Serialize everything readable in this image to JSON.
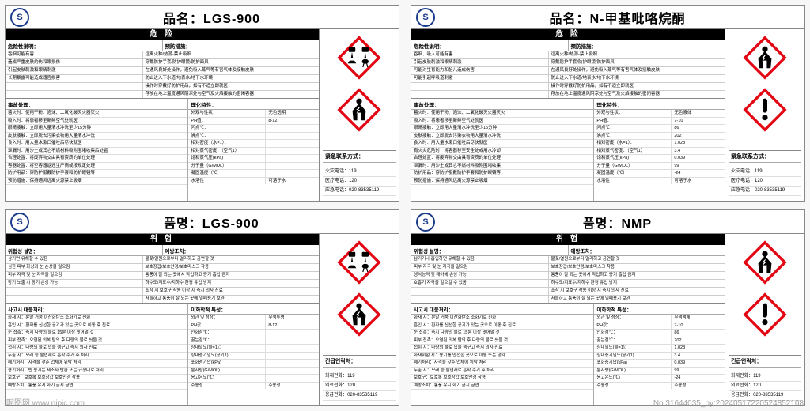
{
  "colors": {
    "picto_border": "#e30613",
    "picto_fill": "#ffffff",
    "picto_symbol": "#000000",
    "logo_color": "#1a3a8a",
    "card_border": "#888888",
    "danger_bg": "#000000",
    "danger_fg": "#ffffff"
  },
  "watermark_left": "昵图网 www.nipic.com",
  "watermark_right": "No.31644035_by:20240517220524852108",
  "cards": [
    {
      "title_prefix": "品名：",
      "title_value": "LGS-900",
      "danger_label": "危 险",
      "pictograms": [
        "corrosion",
        "health"
      ],
      "contact_head": "紧急联系方式：",
      "contacts": [
        "火灾电话：119",
        "医疗电话：120",
        "应急电话：020-83535119"
      ],
      "sec1_h1": "危险性说明：",
      "sec1_h2": "预防措施：",
      "sec1_rows": [
        [
          "吞咽可能有害",
          "远离火种/热源-禁止吸烟"
        ],
        [
          "造成严重皮肤灼伤和眼损伤",
          "穿戴防护手套/防护眼镜/防护面具"
        ],
        [
          "引起皮肤刺激和眼睛刺激",
          "在通风良好处操作，避免吸入蒸气等有害气体及接触皮肤"
        ],
        [
          "长期暴露可能造成器官损害",
          "防止进入下水道/地表水/地下水环境"
        ],
        [
          "",
          "操作时穿戴好防护用品，如有不适立即就医"
        ],
        [
          "",
          "存放在地上温度通风阴凉处与空气及火焰接触的密闭容器"
        ]
      ],
      "sec2_h": "事故处理：",
      "sec2_lines": [
        "着火时：使用干粉、泡沫、二氧化碳灭火器灭火",
        "吸入时：将患者移至新鲜空气处就医",
        "眼睛接触：立即用大量清水冲洗至少15分钟",
        "皮肤接触：立即脱去污染衣物用大量清水冲洗",
        "食入时：用大量水漱口催吐后尽快就医",
        "泄漏时：用沙土或其它不燃材料吸附围堵收集后处置",
        "合理处置：将废弃物交由具有资质的单位处理",
        "容器处置：将空容器返还生产商或按规定处理",
        "防护用品：穿防护服戴防护手套和防护眼镜等",
        "预防措施：保持通风远离火源禁止吸烟"
      ],
      "phys_h": "理化特性：",
      "phys_rows": [
        [
          "外观与性状：",
          "无色透明"
        ],
        [
          "PH值：",
          "8-12"
        ],
        [
          "闪点℃：",
          ""
        ],
        [
          "沸点℃：",
          ""
        ],
        [
          "相对密度（水=1）：",
          ""
        ],
        [
          "相对蒸气密度：（空气1）",
          ""
        ],
        [
          "饱和蒸气压(kPa)",
          ""
        ],
        [
          "分子量（G/MOL）",
          ""
        ],
        [
          "凝固温度（℃）",
          ""
        ],
        [
          "水溶性",
          "可溶于水"
        ]
      ]
    },
    {
      "title_prefix": "品名：",
      "title_value": "N-甲基吡咯烷酮",
      "danger_label": "危 险",
      "pictograms": [
        "health",
        "exclaim"
      ],
      "contact_head": "紧急联系方式：",
      "contacts": [
        "火灾电话：119",
        "医疗电话：120",
        "应急电话：020-83535119"
      ],
      "sec1_h1": "危险性说明：",
      "sec1_h2": "预防措施：",
      "sec1_rows": [
        [
          "吞咽、吸入可能有害",
          "远离火种/热源-禁止吸烟"
        ],
        [
          "引起皮肤刺激和眼睛刺激",
          "穿戴防护手套/防护眼镜/防护面具"
        ],
        [
          "可能对生育能力和胎儿造成伤害",
          "在通风良好处操作，避免吸入蒸气等有害气体及接触皮肤"
        ],
        [
          "可能引起呼吸道刺激",
          "防止进入下水道/地表水/地下水环境"
        ],
        [
          "",
          "操作时穿戴好防护用品，如有不适立即就医"
        ],
        [
          "",
          "存放在地上温度通风阴凉处与空气及火焰接触的密闭容器"
        ]
      ],
      "sec2_h": "事故处理：",
      "sec2_lines": [
        "着火时：使用干粉、泡沫、二氧化碳灭火器灭火",
        "吸入时：将患者移至新鲜空气处就医",
        "眼睛接触：立即用大量清水冲洗至少15分钟",
        "皮肤接触：立即脱去污染衣物用大量清水冲洗",
        "食入时：用大量水漱口催吐后尽快就医",
        "有火灾危险时：将容器移至安全处或用水冷却",
        "合理处置：将废弃物交由具有资质的单位处理",
        "泄漏时：用沙土或其它不燃材料吸附围堵收集",
        "防护用品：穿防护服戴防护手套和防护眼镜等",
        "预防措施：保持通风远离火源禁止吸烟"
      ],
      "phys_h": "理化特性：",
      "phys_rows": [
        [
          "外观与性状：",
          "无色液体"
        ],
        [
          "PH值：",
          "7-10"
        ],
        [
          "闪点℃：",
          "86"
        ],
        [
          "沸点℃：",
          "202"
        ],
        [
          "相对密度（水=1）：",
          "1.028"
        ],
        [
          "相对蒸气密度：（空气1）",
          "3.4"
        ],
        [
          "饱和蒸气压(kPa)",
          "0.039"
        ],
        [
          "分子量（G/MOL）",
          "99"
        ],
        [
          "凝固温度（℃）",
          "-24"
        ],
        [
          "水溶性",
          "可溶于水"
        ]
      ]
    },
    {
      "title_prefix": "품명：",
      "title_value": "LGS-900",
      "danger_label": "위 험",
      "pictograms": [
        "corrosion",
        "health"
      ],
      "contact_head": "긴급연락처：",
      "contacts": [
        "화재전화：119",
        "의료전화：120",
        "응급전화：020-83535119"
      ],
      "sec1_h1": "위험성 설명：",
      "sec1_h2": "예방조치：",
      "sec1_rows": [
        [
          "삼키면 유해할 수 있음",
          "불꽃/열원으로부터 멀리하고 금연할 것"
        ],
        [
          "심한 피부 화상과 눈 손상을 일으킴",
          "보호장갑/보호안경/보호마스크 착용"
        ],
        [
          "피부 자극 및 눈 자극을 일으킴",
          "통풍이 잘 되는 곳에서 작업하고 증기 흡입 금지"
        ],
        [
          "장기 노출 시 장기 손상 가능",
          "하수도/지표수/지하수 환경 유입 방지"
        ],
        [
          "",
          "조작 시 보호구 착용 이상 시 즉시 의사 진료"
        ],
        [
          "",
          "서늘하고 통풍이 잘 되는 곳에 밀폐용기 보관"
        ]
      ],
      "sec2_h": "사고시 대응처리：",
      "sec2_lines": [
        "화재 시：분말 거품 이산화탄소 소화기로 진화",
        "흡입 시：환자를 신선한 공기가 있는 곳으로 이동 후 진료",
        "눈 접촉：즉시 다량의 물로 15분 이상 씻어낼 것",
        "피부 접촉：오염된 의복 탈의 후 다량의 물로 씻을 것",
        "섭취 시：다량의 물로 입을 헹구고 즉시 의사 진료",
        "누출 시：모래 등 불연재로 흡착 수거 후 처리",
        "폐기처리：자격을 갖춘 업체에 위탁 처리",
        "용기처리：빈 용기는 제조사 반환 또는 규정대로 처리",
        "보호구：보호복 보호장갑 보호안경 착용",
        "예방조치：통풍 유지 화기 금지 금연"
      ],
      "phys_h": "이화학적 특성：",
      "phys_rows": [
        [
          "외관 및 성상：",
          "무색투명"
        ],
        [
          "PH값：",
          "8-12"
        ],
        [
          "인화점℃：",
          ""
        ],
        [
          "끓는점℃：",
          ""
        ],
        [
          "상대밀도(물=1)：",
          ""
        ],
        [
          "상대증기밀도(공기1)",
          ""
        ],
        [
          "포화증기압(kPa)",
          ""
        ],
        [
          "분자량(G/MOL)",
          ""
        ],
        [
          "응고온도(℃)",
          ""
        ],
        [
          "수용성",
          "수용성"
        ]
      ]
    },
    {
      "title_prefix": "품명：",
      "title_value": "NMP",
      "danger_label": "위 험",
      "pictograms": [
        "health",
        "exclaim"
      ],
      "contact_head": "긴급연락처：",
      "contacts": [
        "화재전화：119",
        "의료전화：120",
        "응급전화：020-83535119"
      ],
      "sec1_h1": "위험성 설명：",
      "sec1_h2": "예방조치：",
      "sec1_rows": [
        [
          "삼키거나 흡입하면 유해할 수 있음",
          "불꽃/열원으로부터 멀리하고 금연할 것"
        ],
        [
          "피부 자극 및 눈 자극을 일으킴",
          "보호장갑/보호안경/보호마스크 착용"
        ],
        [
          "생식능력 및 태아에 손상 가능",
          "통풍이 잘 되는 곳에서 작업하고 증기 흡입 금지"
        ],
        [
          "호흡기 자극을 일으킬 수 있음",
          "하수도/지표수/지하수 환경 유입 방지"
        ],
        [
          "",
          "조작 시 보호구 착용 이상 시 즉시 의사 진료"
        ],
        [
          "",
          "서늘하고 통풍이 잘 되는 곳에 밀폐용기 보관"
        ]
      ],
      "sec2_h": "사고시 대응처리：",
      "sec2_lines": [
        "화재 시：분말 거품 이산화탄소 소화기로 진화",
        "흡입 시：환자를 신선한 공기가 있는 곳으로 이동 후 진료",
        "눈 접촉：즉시 다량의 물로 15분 이상 씻어낼 것",
        "피부 접촉：오염된 의복 탈의 후 다량의 물로 씻을 것",
        "섭취 시：다량의 물로 입을 헹구고 즉시 의사 진료",
        "화재위험 시：용기를 안전한 곳으로 이동 또는 냉각",
        "폐기처리：자격을 갖춘 업체에 위탁 처리",
        "누출 시：모래 등 불연재로 흡착 수거 후 처리",
        "보호구：보호복 보호장갑 보호안경 착용",
        "예방조치：통풍 유지 화기 금지 금연"
      ],
      "phys_h": "이화학적 특성：",
      "phys_rows": [
        [
          "외관 및 성상：",
          "무색액체"
        ],
        [
          "PH값：",
          "7-10"
        ],
        [
          "인화점℃：",
          "86"
        ],
        [
          "끓는점℃：",
          "202"
        ],
        [
          "상대밀도(물=1)：",
          "1.028"
        ],
        [
          "상대증기밀도(공기1)",
          "3.4"
        ],
        [
          "포화증기압(kPa)",
          "0.039"
        ],
        [
          "분자량(G/MOL)",
          "99"
        ],
        [
          "응고온도(℃)",
          "-24"
        ],
        [
          "수용성",
          "수용성"
        ]
      ]
    }
  ]
}
